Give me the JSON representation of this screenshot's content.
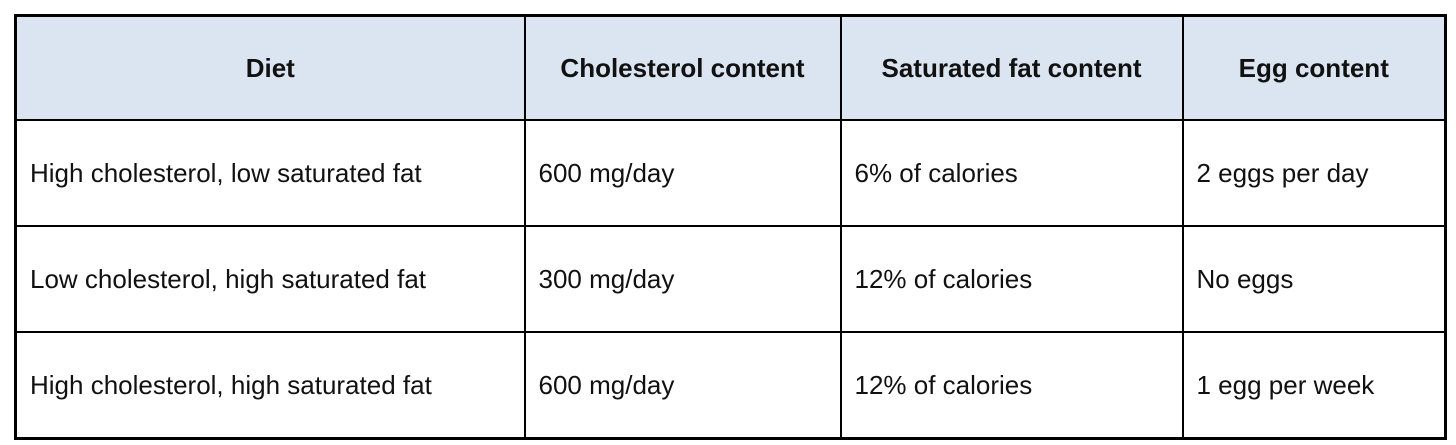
{
  "colors": {
    "header_background": "#dbe5f1",
    "grid_border": "#000000",
    "text": "#111111",
    "page_background": "#ffffff"
  },
  "table": {
    "columns": [
      {
        "label": "Diet"
      },
      {
        "label": "Cholesterol content"
      },
      {
        "label": "Saturated fat content"
      },
      {
        "label": "Egg content"
      }
    ],
    "rows": [
      {
        "diet": "High cholesterol, low saturated fat",
        "cholesterol": "600 mg/day",
        "saturated_fat": "6% of calories",
        "eggs": "2 eggs per day"
      },
      {
        "diet": "Low cholesterol, high saturated fat",
        "cholesterol": "300 mg/day",
        "saturated_fat": "12% of calories",
        "eggs": "No eggs"
      },
      {
        "diet": "High cholesterol, high saturated fat",
        "cholesterol": "600 mg/day",
        "saturated_fat": "12% of calories",
        "eggs": "1 egg per week"
      }
    ]
  }
}
